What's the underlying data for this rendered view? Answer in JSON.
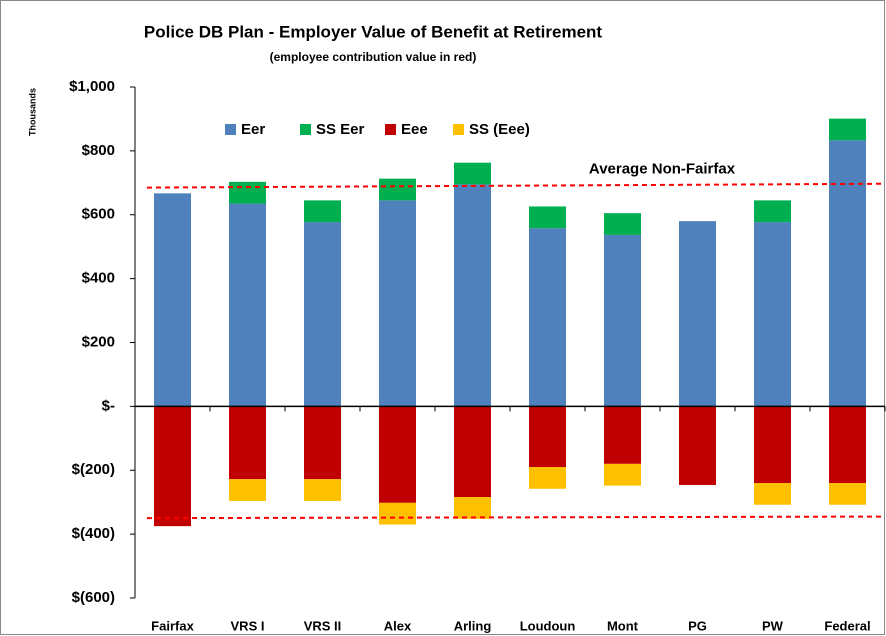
{
  "chart_data": {
    "type": "stacked_bar",
    "title": "Police DB Plan - Employer Value of Benefit at Retirement",
    "subtitle": "(employee contribution value in red)",
    "y_axis_label": "Thousands",
    "categories": [
      "Fairfax",
      "VRS I",
      "VRS II",
      "Alex",
      "Arling",
      "Loudoun",
      "Mont",
      "PG",
      "PW",
      "Federal"
    ],
    "series": [
      {
        "name": "Eer",
        "color": "#4f81bd",
        "values": [
          667,
          635,
          577,
          645,
          695,
          558,
          537,
          580,
          577,
          833
        ]
      },
      {
        "name": "SS Eer",
        "color": "#00b050",
        "values": [
          0,
          68,
          68,
          68,
          68,
          68,
          68,
          0,
          68,
          68
        ]
      },
      {
        "name": "Eee",
        "color": "#c00000",
        "values": [
          -375,
          -228,
          -228,
          -302,
          -284,
          -190,
          -180,
          -246,
          -240,
          -240
        ]
      },
      {
        "name": "SS (Eee)",
        "color": "#ffc000",
        "values": [
          0,
          -68,
          -68,
          -68,
          -68,
          -68,
          -68,
          0,
          -68,
          -68
        ]
      }
    ],
    "ylim": [
      -600,
      1000
    ],
    "yticks": [
      {
        "value": -600,
        "label": "$(600)"
      },
      {
        "value": -400,
        "label": "$(400)"
      },
      {
        "value": -200,
        "label": "$(200)"
      },
      {
        "value": 0,
        "label": "$-"
      },
      {
        "value": 200,
        "label": "$200"
      },
      {
        "value": 400,
        "label": "$400"
      },
      {
        "value": 600,
        "label": "$600"
      },
      {
        "value": 800,
        "label": "$800"
      },
      {
        "value": 1000,
        "label": "$1,000"
      }
    ],
    "reference_lines": [
      {
        "label": "Average Non-Fairfax",
        "values": [
          685,
          697
        ],
        "color": "#ff0000"
      },
      {
        "values": [
          -350,
          -345
        ],
        "color": "#ff0000"
      }
    ],
    "legend": "top-left"
  }
}
